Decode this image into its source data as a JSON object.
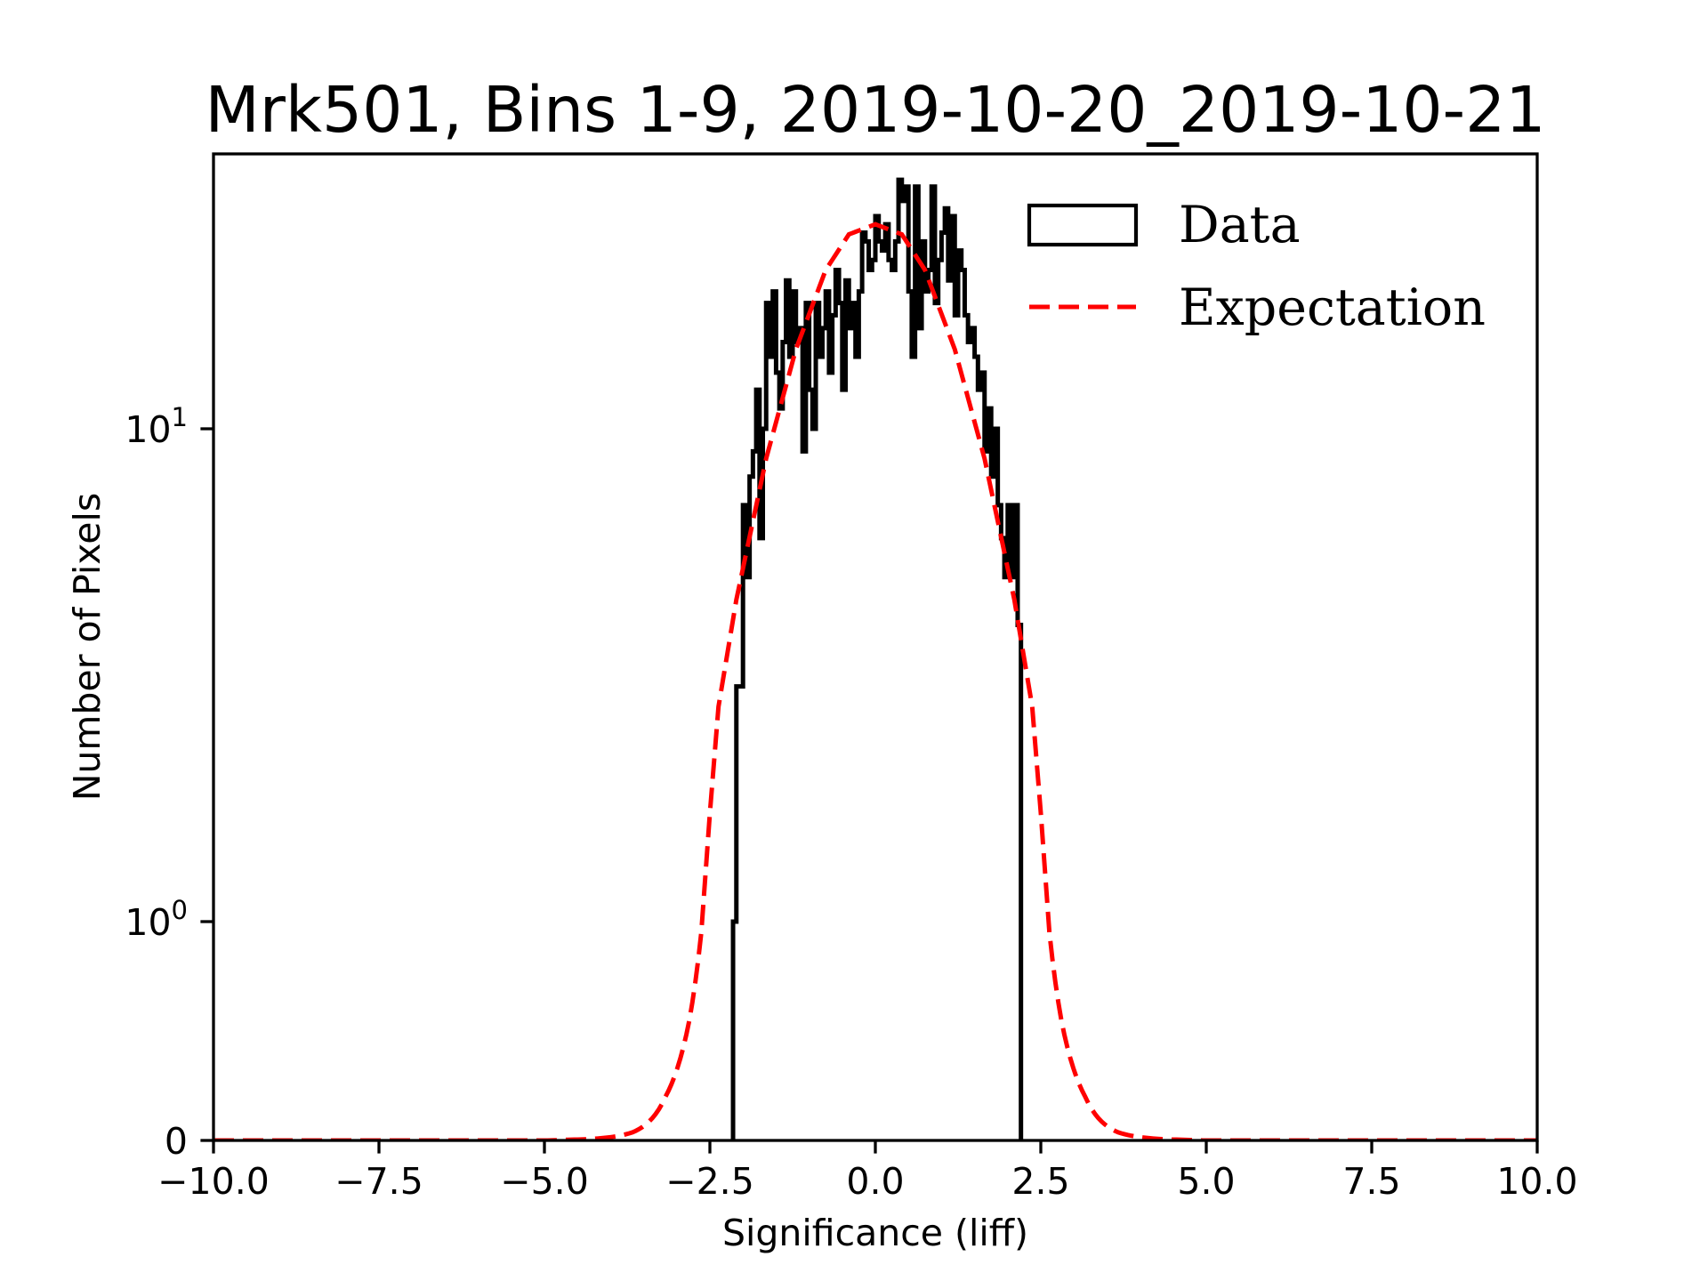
{
  "chart_data": {
    "type": "histogram",
    "title": "Mrk501, Bins 1-9, 2019-10-20_2019-10-21",
    "xlabel": "Significance (liff)",
    "ylabel": "Number of Pixels",
    "xlim": [
      -10,
      10
    ],
    "ylim": [
      0,
      36
    ],
    "yscale": "symlog",
    "ylinthresh": 1,
    "grid": false,
    "x_ticks": [
      {
        "value": -10,
        "label": "−10.0"
      },
      {
        "value": -7.5,
        "label": "−7.5"
      },
      {
        "value": -5,
        "label": "−5.0"
      },
      {
        "value": -2.5,
        "label": "−2.5"
      },
      {
        "value": 0,
        "label": "0.0"
      },
      {
        "value": 2.5,
        "label": "2.5"
      },
      {
        "value": 5,
        "label": "5.0"
      },
      {
        "value": 7.5,
        "label": "7.5"
      },
      {
        "value": 10,
        "label": "10.0"
      }
    ],
    "y_ticks": [
      {
        "value": 0,
        "base": "0",
        "exp": ""
      },
      {
        "value": 1,
        "base": "10",
        "exp": "0"
      },
      {
        "value": 10,
        "base": "10",
        "exp": "1"
      }
    ],
    "legend": {
      "position": "upper-right",
      "entries": [
        {
          "label": "Data",
          "style": "step-outline",
          "color": "#000000"
        },
        {
          "label": "Expectation",
          "style": "dashed-line",
          "color": "#ff0000"
        }
      ]
    },
    "series": [
      {
        "name": "Data",
        "kind": "step-histogram",
        "color": "#000000",
        "bin_start": -2.15,
        "bin_width": 0.05,
        "counts": [
          1,
          3,
          3,
          7,
          5,
          8,
          9,
          12,
          6,
          10,
          18,
          14,
          19,
          13,
          11,
          15,
          20,
          14,
          19,
          15,
          16,
          9,
          18,
          12,
          10,
          18,
          14,
          16,
          19,
          13,
          17,
          21,
          18,
          12,
          20,
          16,
          18,
          14,
          19,
          25,
          24,
          21,
          22,
          27,
          24,
          23,
          26,
          22,
          21,
          24,
          32,
          29,
          31,
          19,
          14,
          31,
          16,
          24,
          19,
          21,
          31,
          18,
          22,
          25,
          28,
          20,
          27,
          17,
          23,
          21,
          17,
          15,
          16,
          14,
          12,
          13,
          9,
          11,
          8,
          10,
          7,
          6,
          5,
          7,
          5,
          7,
          4
        ]
      },
      {
        "name": "Expectation",
        "kind": "dashed-line",
        "color": "#ff0000",
        "x": [
          -10,
          -5,
          -4.5,
          -4.0,
          -3.67,
          -3.17,
          -2.81,
          -2.63,
          -2.5,
          -2.37,
          -2.1,
          -1.65,
          -1.2,
          -0.75,
          -0.4,
          0,
          0.4,
          0.75,
          1.2,
          1.65,
          2.1,
          2.37,
          2.5,
          2.63,
          2.81,
          3.17,
          3.67,
          4.0,
          4.5,
          5,
          10
        ],
        "y": [
          0,
          0,
          0.004,
          0.015,
          0.037,
          0.2,
          0.55,
          0.95,
          1.66,
          2.73,
          4.5,
          8.7,
          14.5,
          21.0,
          24.8,
          26.0,
          24.8,
          21.0,
          14.5,
          8.7,
          4.5,
          2.73,
          1.66,
          0.95,
          0.55,
          0.2,
          0.037,
          0.015,
          0.004,
          0,
          0
        ]
      }
    ]
  }
}
